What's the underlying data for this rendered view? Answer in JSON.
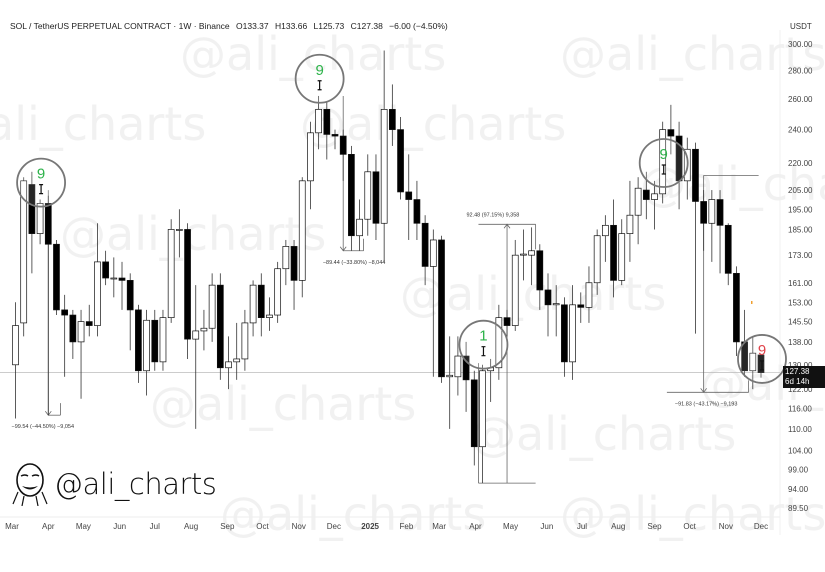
{
  "header": {
    "symbol": "SOL / TetherUS PERPETUAL CONTRACT · 1W · Binance",
    "open": "O133.37",
    "high": "H133.66",
    "low": "L125.73",
    "close": "C127.38",
    "change": "−6.00 (−4.50%)"
  },
  "watermark": "@ali_charts",
  "price_label": {
    "price": "127.38",
    "countdown": "6d 14h"
  },
  "colors": {
    "bull_body": "#ffffff",
    "bear_body": "#000000",
    "td_green": "#2db34a",
    "td_red": "#e0434b",
    "circle": "#777777"
  },
  "chart_data": {
    "type": "candlestick",
    "interval": "1W",
    "first_candle_date": "2024-03-04",
    "y_unit": "USDT",
    "y_scale": "log",
    "ylim": [
      89.5,
      300
    ],
    "grid": false,
    "y_ticks": [
      "300.00",
      "280.00",
      "260.00",
      "240.00",
      "220.00",
      "205.00",
      "195.00",
      "185.00",
      "173.00",
      "161.00",
      "153.00",
      "145.50",
      "138.00",
      "130.00",
      "122.00",
      "116.00",
      "110.00",
      "104.00",
      "99.00",
      "94.00",
      "89.50"
    ],
    "x_ticks": [
      {
        "label": "Mar",
        "date": "2024-03-01"
      },
      {
        "label": "Apr",
        "date": "2024-04-01"
      },
      {
        "label": "May",
        "date": "2024-05-01"
      },
      {
        "label": "Jun",
        "date": "2024-06-01"
      },
      {
        "label": "Jul",
        "date": "2024-07-01"
      },
      {
        "label": "Aug",
        "date": "2024-08-01"
      },
      {
        "label": "Sep",
        "date": "2024-09-01"
      },
      {
        "label": "Oct",
        "date": "2024-10-01"
      },
      {
        "label": "Nov",
        "date": "2024-11-01"
      },
      {
        "label": "Dec",
        "date": "2024-12-01"
      },
      {
        "label": "2025",
        "date": "2025-01-01",
        "bold": true
      },
      {
        "label": "Feb",
        "date": "2025-02-01"
      },
      {
        "label": "Mar",
        "date": "2025-03-01"
      },
      {
        "label": "Apr",
        "date": "2025-04-01"
      },
      {
        "label": "May",
        "date": "2025-05-01"
      },
      {
        "label": "Jun",
        "date": "2025-06-01"
      },
      {
        "label": "Jul",
        "date": "2025-07-01"
      },
      {
        "label": "Aug",
        "date": "2025-08-01"
      },
      {
        "label": "Sep",
        "date": "2025-09-01"
      },
      {
        "label": "Oct",
        "date": "2025-10-01"
      },
      {
        "label": "Nov",
        "date": "2025-11-01"
      },
      {
        "label": "Dec",
        "date": "2025-12-01"
      }
    ],
    "candles_ohlc": [
      [
        130,
        153,
        113,
        144
      ],
      [
        145,
        212,
        140,
        210
      ],
      [
        208,
        215,
        165,
        183
      ],
      [
        183,
        200,
        178,
        198
      ],
      [
        198,
        202,
        114,
        178
      ],
      [
        178,
        180,
        148,
        150
      ],
      [
        150,
        156,
        126,
        148
      ],
      [
        148,
        150,
        132,
        138
      ],
      [
        138,
        150,
        119,
        145.5
      ],
      [
        145.5,
        152,
        140,
        144
      ],
      [
        144,
        188,
        140,
        170
      ],
      [
        170,
        175,
        160,
        163
      ],
      [
        163,
        172,
        155,
        163
      ],
      [
        163,
        170,
        150,
        162
      ],
      [
        162,
        165,
        135,
        150
      ],
      [
        150,
        152,
        124,
        128
      ],
      [
        128,
        150,
        120,
        146
      ],
      [
        146,
        150,
        128,
        131
      ],
      [
        131,
        150,
        128,
        147
      ],
      [
        147,
        190,
        145,
        185
      ],
      [
        185,
        195,
        172,
        185
      ],
      [
        185,
        188,
        132,
        139
      ],
      [
        139,
        160,
        110,
        142
      ],
      [
        142,
        150,
        135,
        143
      ],
      [
        143,
        165,
        138,
        160
      ],
      [
        160,
        165,
        125,
        129
      ],
      [
        129,
        140,
        122,
        131
      ],
      [
        131,
        145,
        125,
        132
      ],
      [
        132,
        150,
        128,
        145
      ],
      [
        145,
        162,
        140,
        160
      ],
      [
        160,
        165,
        140,
        147
      ],
      [
        147,
        155,
        142,
        148
      ],
      [
        148,
        170,
        145,
        167
      ],
      [
        167,
        180,
        160,
        177
      ],
      [
        177,
        180,
        150,
        162
      ],
      [
        162,
        212,
        155,
        210
      ],
      [
        210,
        245,
        195,
        238
      ],
      [
        238,
        262,
        228,
        253
      ],
      [
        253,
        258,
        222,
        237
      ],
      [
        237,
        240,
        228,
        236
      ],
      [
        236,
        240,
        210,
        225
      ],
      [
        225,
        230,
        175,
        182
      ],
      [
        182,
        200,
        175,
        190
      ],
      [
        190,
        225,
        182,
        215
      ],
      [
        215,
        225,
        180,
        188
      ],
      [
        188,
        295,
        170,
        253
      ],
      [
        253,
        270,
        230,
        240
      ],
      [
        240,
        248,
        200,
        204
      ],
      [
        204,
        225,
        180,
        200
      ],
      [
        200,
        210,
        180,
        188
      ],
      [
        188,
        192,
        160,
        168
      ],
      [
        168,
        185,
        126,
        180
      ],
      [
        180,
        182,
        124,
        126
      ],
      [
        126,
        140,
        110,
        126.5
      ],
      [
        126,
        140,
        120,
        133
      ],
      [
        133,
        138,
        115,
        125
      ],
      [
        125,
        128,
        100,
        105
      ],
      [
        105,
        130,
        95.5,
        128
      ],
      [
        128,
        132,
        118,
        129
      ],
      [
        129,
        152,
        125,
        147
      ],
      [
        147,
        150,
        140,
        144
      ],
      [
        144,
        180,
        142,
        173
      ],
      [
        173,
        185,
        162,
        173.5
      ],
      [
        173,
        186,
        160,
        175
      ],
      [
        175,
        178,
        150,
        158
      ],
      [
        158,
        165,
        140,
        152
      ],
      [
        152,
        160,
        140,
        152.5
      ],
      [
        152,
        155,
        126,
        131
      ],
      [
        131,
        160,
        125,
        152
      ],
      [
        152,
        157,
        145,
        151
      ],
      [
        151,
        168,
        145,
        161
      ],
      [
        161,
        185,
        156,
        182
      ],
      [
        182,
        192,
        170,
        187
      ],
      [
        187,
        200,
        155,
        162
      ],
      [
        162,
        190,
        160,
        183
      ],
      [
        183,
        210,
        170,
        192
      ],
      [
        192,
        212,
        178,
        206
      ],
      [
        205,
        215,
        190,
        200
      ],
      [
        200,
        210,
        185,
        203
      ],
      [
        203,
        245,
        198,
        240
      ],
      [
        240,
        256,
        225,
        236
      ],
      [
        236,
        245,
        195,
        210
      ],
      [
        210,
        235,
        200,
        228
      ],
      [
        228,
        232,
        141,
        199
      ],
      [
        199,
        205,
        175,
        188
      ],
      [
        188,
        205,
        170,
        200
      ],
      [
        200,
        205,
        165,
        187
      ],
      [
        187,
        188,
        160,
        165
      ],
      [
        165,
        168,
        133,
        138
      ],
      [
        138,
        150,
        126,
        128
      ],
      [
        128,
        140,
        122,
        134
      ],
      [
        133.37,
        133.66,
        125.73,
        127.38
      ]
    ],
    "current_price": 127.38,
    "td_markers": [
      {
        "label": "9",
        "color": "green",
        "candle": 3,
        "price": 209
      },
      {
        "label": "9",
        "color": "green",
        "candle": 37,
        "price": 274
      },
      {
        "label": "1",
        "color": "green",
        "candle": 57,
        "price": 137
      },
      {
        "label": "9",
        "color": "green",
        "candle": 79,
        "price": 220
      },
      {
        "label": "9",
        "color": "red",
        "candle": 91,
        "price": 132
      }
    ],
    "measurements": [
      {
        "text": "−99.54 (−44.50%) −9,054",
        "from_candle": 0,
        "to_candle": 5,
        "arrow_candle": 4,
        "top": 205,
        "bottom": 114,
        "direction": "down"
      },
      {
        "text": "−89.44 (−33.80%) −8,044",
        "from_candle": 38,
        "to_candle": 42,
        "arrow_candle": 40,
        "top": 262,
        "bottom": 175,
        "direction": "down"
      },
      {
        "text": "92.48 (97.15%) 9,358",
        "from_candle": 57,
        "to_candle": 63,
        "arrow_candle": 60,
        "top": 187.5,
        "bottom": 95.5,
        "direction": "up"
      },
      {
        "text": "−91.83 (−43.17%) −9,193",
        "from_candle": 80,
        "to_candle": 89,
        "arrow_candle": 84,
        "top": 213,
        "bottom": 121,
        "direction": "down"
      }
    ]
  }
}
